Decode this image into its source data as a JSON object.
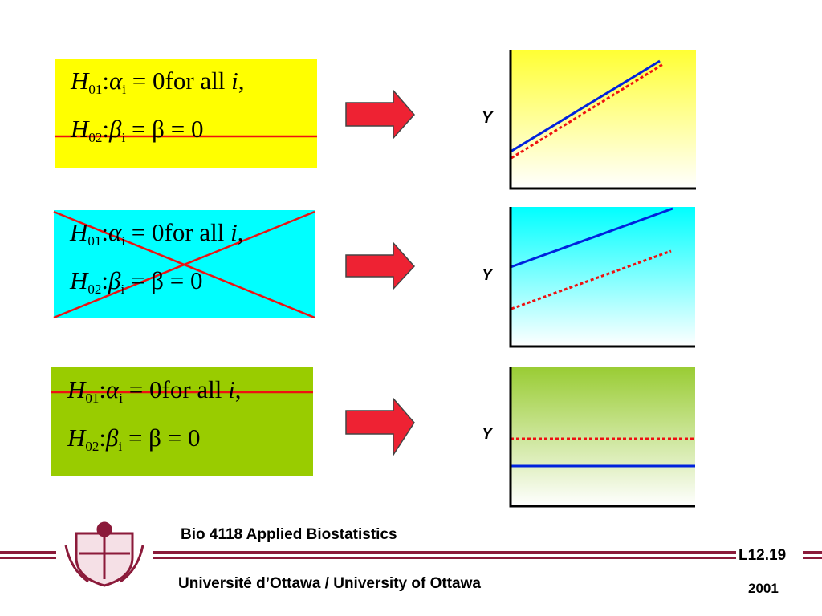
{
  "panels": [
    {
      "h01": [
        "H",
        "01",
        ":",
        "α",
        "i",
        " = 0",
        "for all ",
        "i",
        ","
      ],
      "h02": [
        "H",
        "02",
        ":",
        "β",
        "i",
        " = β = 0"
      ],
      "y_label": "Y"
    },
    {
      "h01": [
        "H",
        "01",
        ":",
        "α",
        "i",
        " = 0",
        "for all ",
        "i",
        ","
      ],
      "h02": [
        "H",
        "02",
        ":",
        "β",
        "i",
        " = β = 0"
      ],
      "y_label": "Y"
    },
    {
      "h01": [
        "H",
        "01",
        ":",
        "α",
        "i",
        " = 0",
        "for all ",
        "i",
        ","
      ],
      "h02": [
        "H",
        "02",
        ":",
        "β",
        "i",
        " = β = 0"
      ],
      "y_label": "Y"
    }
  ],
  "footer": {
    "course": "Bio 4118 Applied Biostatistics",
    "university": "Université d’Ottawa / University of Ottawa",
    "slide": "L12.19",
    "year": "2001"
  }
}
